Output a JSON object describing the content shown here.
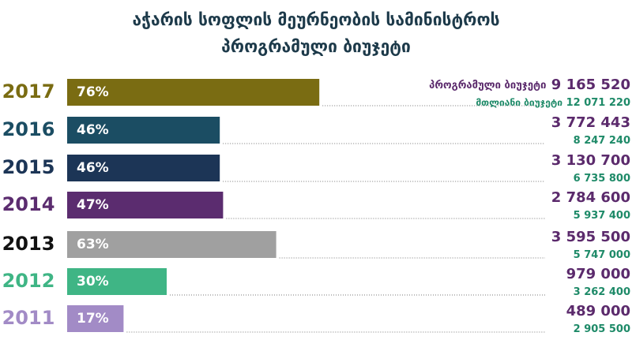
{
  "chart_data": {
    "type": "bar",
    "orientation": "horizontal",
    "title": [
      "აჭარის სოფლის მეურნეობის სამინისტროს",
      "პროგრამული ბიუჯეტი"
    ],
    "categories": [
      "2017",
      "2016",
      "2015",
      "2014",
      "2013",
      "2012",
      "2011"
    ],
    "category_colors": [
      "#7a6c12",
      "#1b4d63",
      "#1c3556",
      "#5b2c6f",
      "#111111",
      "#3fb585",
      "#a28bc6"
    ],
    "values": [
      76,
      46,
      46,
      47,
      63,
      30,
      17
    ],
    "value_labels": [
      "76%",
      "46%",
      "46%",
      "47%",
      "63%",
      "30%",
      "17%"
    ],
    "colors": [
      "#7a6c12",
      "#1b4d63",
      "#1c3556",
      "#5b2c6f",
      "#a0a0a0",
      "#3fb585",
      "#a28bc6"
    ],
    "series": [
      {
        "name": "პროგრამული ბიუჯეტი",
        "color": "#5b2a6c",
        "values": [
          9165520,
          3772443,
          3130700,
          2784600,
          3595500,
          979000,
          489000
        ],
        "value_labels": [
          "9 165 520",
          "3 772 443",
          "3 130 700",
          "2 784 600",
          "3 595 500",
          "979 000",
          "489 000"
        ]
      },
      {
        "name": "მთლიანი ბიუჯეტი",
        "color": "#1e8a68",
        "values": [
          12071220,
          8247240,
          6735800,
          5937400,
          5747000,
          3262400,
          2905500
        ],
        "value_labels": [
          "12 071 220",
          "8 247 240",
          "6 735 800",
          "5 937 400",
          "5 747 000",
          "3 262 400",
          "2 905 500"
        ]
      }
    ]
  }
}
